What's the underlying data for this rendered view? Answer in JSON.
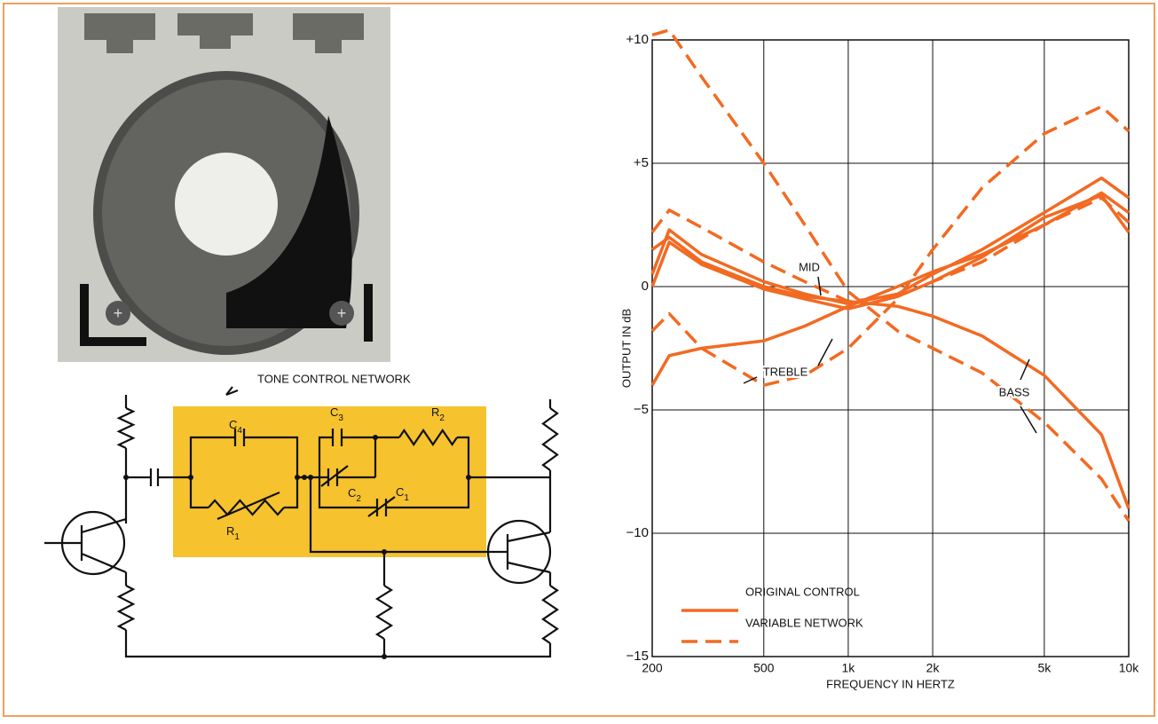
{
  "chart_data": {
    "type": "line",
    "x_label": "FREQUENCY IN HERTZ",
    "y_label": "OUTPUT IN dB",
    "x": [
      200,
      230,
      300,
      500,
      700,
      1000,
      1500,
      2000,
      3000,
      5000,
      8000,
      10000
    ],
    "xlim": [
      200,
      10000
    ],
    "xlog": true,
    "xticks": [
      200,
      500,
      {
        "value": 1000,
        "label": "1k"
      },
      {
        "value": 2000,
        "label": "2k"
      },
      {
        "value": 5000,
        "label": "5k"
      },
      {
        "value": 10000,
        "label": "10k"
      }
    ],
    "ylim": [
      -15,
      10
    ],
    "yticks": [
      {
        "value": -15,
        "label": "−15"
      },
      {
        "value": -10,
        "label": "−10"
      },
      {
        "value": -5,
        "label": "−5"
      },
      0,
      {
        "value": 5,
        "label": "+5"
      },
      {
        "value": 10,
        "label": "+10"
      }
    ],
    "grid": true,
    "series": [
      {
        "name": "ORIGINAL CONTROL",
        "color": "#f26a22",
        "dashed": false,
        "curves": [
          [
            0.5,
            2.3,
            1.3,
            0.2,
            -0.3,
            -0.7,
            -0.3,
            0.5,
            1.5,
            3.0,
            4.4,
            3.6
          ],
          [
            0,
            1.8,
            0.9,
            -0.1,
            -0.5,
            -0.9,
            -0.4,
            0.2,
            1.2,
            2.8,
            3.7,
            2.2
          ],
          [
            -4,
            -2.8,
            -2.5,
            -2.2,
            -1.6,
            -0.8,
            0,
            0.6,
            1.3,
            2.5,
            3.8,
            3.0
          ],
          [
            1.5,
            2.0,
            1.0,
            0,
            -0.4,
            -0.6,
            -0.8,
            -1.2,
            -2.0,
            -3.6,
            -6.0,
            -9.0
          ]
        ]
      },
      {
        "name": "VARIABLE NETWORK",
        "color": "#f26a22",
        "dashed": true,
        "curves": [
          [
            10.2,
            10.4,
            8.5,
            5.0,
            2.5,
            -0.2,
            -1.8,
            -2.5,
            -3.5,
            -5.5,
            -7.8,
            -9.5
          ],
          [
            -1.8,
            -1.1,
            -2.5,
            -4.0,
            -3.6,
            -2.5,
            -0.5,
            1.5,
            4.0,
            6.2,
            7.3,
            6.3
          ],
          [
            2.2,
            3.1,
            2.4,
            1.0,
            0.2,
            -0.6,
            -0.4,
            0.2,
            1.0,
            2.5,
            3.6,
            2.6
          ]
        ]
      }
    ],
    "annotations": [
      "MID",
      "TREBLE",
      "BASS"
    ]
  },
  "diagram": {
    "title": "TONE CONTROL NETWORK",
    "components": [
      {
        "symbol": "C",
        "index": "4"
      },
      {
        "symbol": "C",
        "index": "3"
      },
      {
        "symbol": "R",
        "index": "2"
      },
      {
        "symbol": "C",
        "index": "2"
      },
      {
        "symbol": "C",
        "index": "1"
      },
      {
        "symbol": "R",
        "index": "1"
      }
    ]
  }
}
